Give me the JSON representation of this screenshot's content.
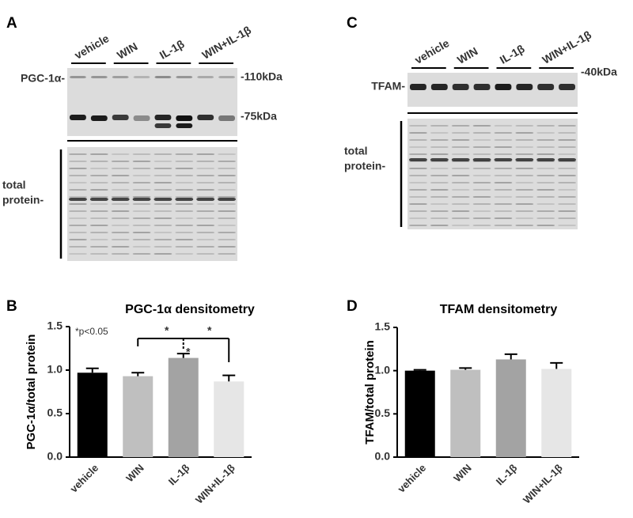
{
  "panels": {
    "A": {
      "letter": "A",
      "lanes": [
        "vehicle",
        "WIN",
        "IL-1β",
        "WIN+IL-1β"
      ],
      "target_label": "PGC-1α-",
      "markers": [
        "-110kDa",
        "-75kDa"
      ],
      "total_label": [
        "total",
        "protein-"
      ]
    },
    "C": {
      "letter": "C",
      "lanes": [
        "vehicle",
        "WIN",
        "IL-1β",
        "WIN+IL-1β"
      ],
      "target_label": "TFAM-",
      "markers": [
        "-40kDa"
      ],
      "total_label": [
        "total",
        "protein-"
      ]
    }
  },
  "chart_data": [
    {
      "type": "bar",
      "letter": "B",
      "title": "PGC-1α densitometry",
      "y_label": "PGC-1α/total protein",
      "categories": [
        "vehicle",
        "WIN",
        "IL-1β",
        "WIN+IL-1β"
      ],
      "values": [
        0.97,
        0.93,
        1.14,
        0.87
      ],
      "errors": [
        0.05,
        0.04,
        0.05,
        0.07
      ],
      "colors": [
        "#000000",
        "#bfbfbf",
        "#a3a3a3",
        "#e6e6e6"
      ],
      "ylim": [
        0,
        1.5
      ],
      "yticks": [
        {
          "value": 0,
          "label": "0.0"
        },
        {
          "value": 0.5,
          "label": "0.5"
        },
        {
          "value": 1,
          "label": "1.0"
        },
        {
          "value": 1.5,
          "label": "1.5"
        }
      ],
      "annotations": [
        "*p<0.05",
        "*",
        "*",
        "*"
      ]
    },
    {
      "type": "bar",
      "letter": "D",
      "title": "TFAM densitometry",
      "y_label": "TFAM/total protein",
      "categories": [
        "vehicle",
        "WIN",
        "IL-1β",
        "WIN+IL-1β"
      ],
      "values": [
        1.0,
        1.01,
        1.13,
        1.02
      ],
      "errors": [
        0.01,
        0.02,
        0.06,
        0.07
      ],
      "colors": [
        "#000000",
        "#bfbfbf",
        "#a3a3a3",
        "#e6e6e6"
      ],
      "ylim": [
        0,
        1.5
      ],
      "yticks": [
        {
          "value": 0,
          "label": "0.0"
        },
        {
          "value": 0.5,
          "label": "0.5"
        },
        {
          "value": 1,
          "label": "1.0"
        },
        {
          "value": 1.5,
          "label": "1.5"
        }
      ]
    }
  ]
}
